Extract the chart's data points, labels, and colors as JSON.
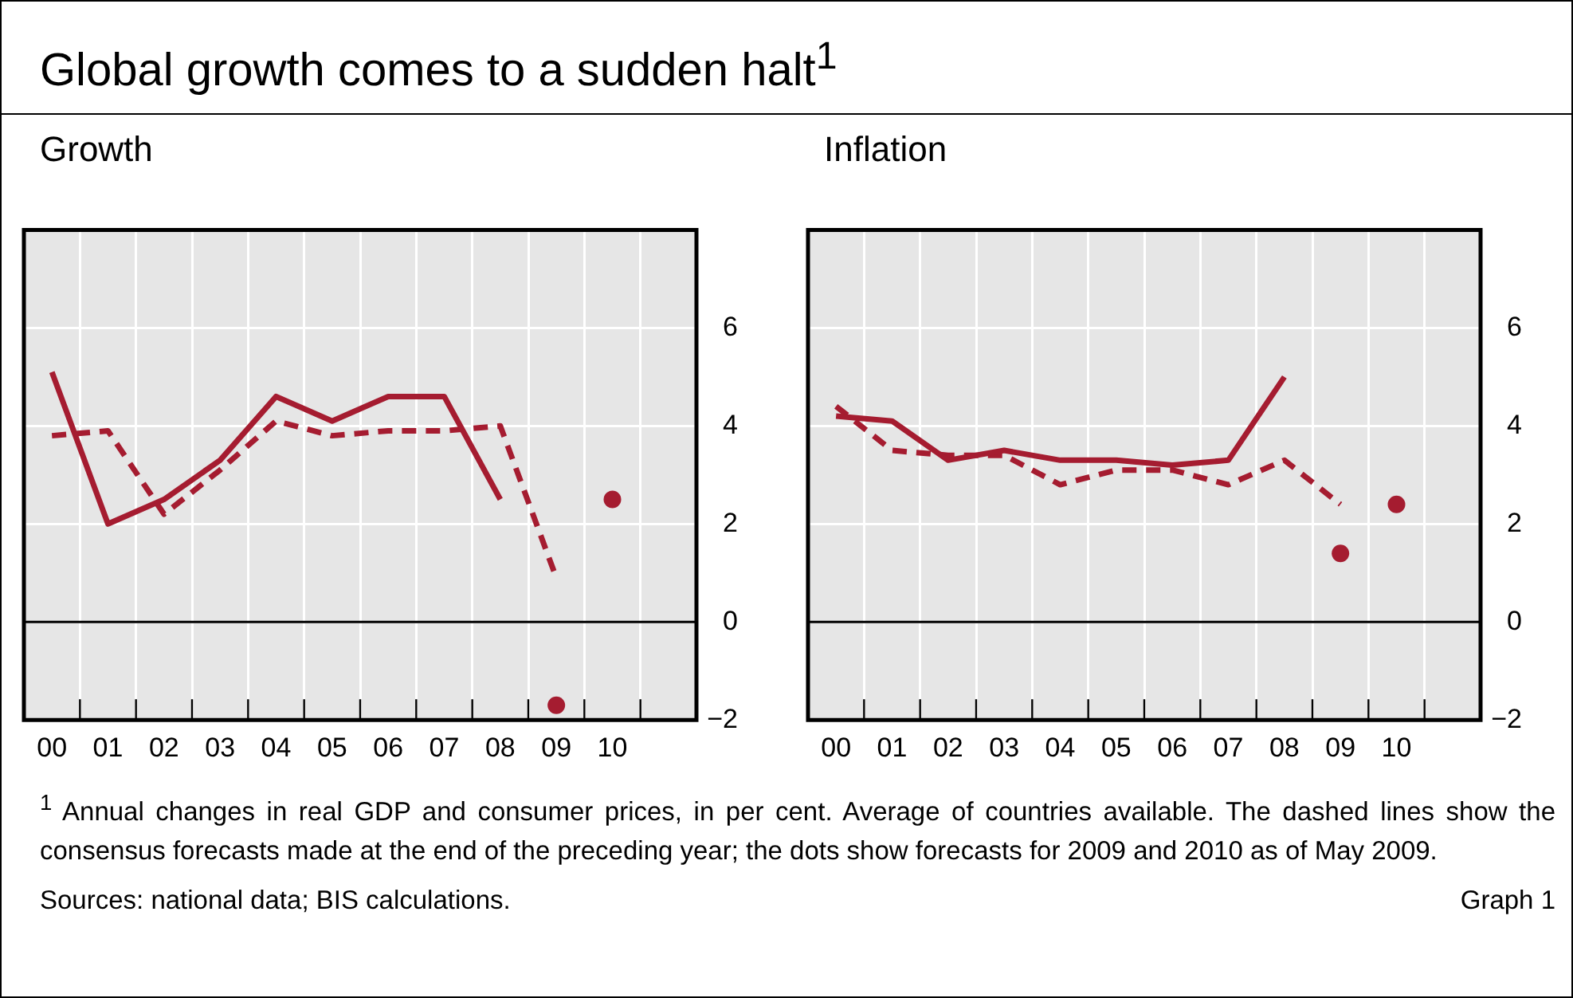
{
  "chart_data": [
    {
      "type": "line",
      "title": "Global growth comes to a sudden halt$^{1}$",
      "subtitle": "Growth",
      "xlim": [
        1999.5,
        2011.5
      ],
      "ylim": [
        -2,
        8
      ],
      "xticks": [
        {
          "value": 1999.5,
          "label": null
        },
        {
          "value": 2000,
          "label": "00"
        },
        {
          "value": 2000.5,
          "label": null
        },
        {
          "value": 2001,
          "label": "01"
        },
        {
          "value": 2001.5,
          "label": null
        },
        {
          "value": 2002,
          "label": "02"
        },
        {
          "value": 2002.5,
          "label": null
        },
        {
          "value": 2003,
          "label": "03"
        },
        {
          "value": 2003.5,
          "label": null
        },
        {
          "value": 2004,
          "label": "04"
        },
        {
          "value": 2004.5,
          "label": null
        },
        {
          "value": 2005,
          "label": "05"
        },
        {
          "value": 2005.5,
          "label": null
        },
        {
          "value": 2006,
          "label": "06"
        },
        {
          "value": 2006.5,
          "label": null
        },
        {
          "value": 2007,
          "label": "07"
        },
        {
          "value": 2007.5,
          "label": null
        },
        {
          "value": 2008,
          "label": "08"
        },
        {
          "value": 2008.5,
          "label": null
        },
        {
          "value": 2009,
          "label": "09"
        },
        {
          "value": 2009.5,
          "label": null
        },
        {
          "value": 2010,
          "label": "10"
        },
        {
          "value": 2010.5,
          "label": null
        }
      ],
      "yticks": [
        -2,
        0,
        2,
        4,
        6
      ],
      "grid": true,
      "ref_lines": [
        {
          "axis": "y",
          "value": 0,
          "color": "#000000"
        }
      ],
      "series": [
        {
          "line_style": "solid",
          "marker": "none",
          "color": "#a51c30",
          "x": [
            2000,
            2001,
            2002,
            2003,
            2004,
            2005,
            2006,
            2007,
            2008
          ],
          "values": [
            5.1,
            2.0,
            2.5,
            3.3,
            4.6,
            4.1,
            4.6,
            4.6,
            2.5
          ]
        },
        {
          "line_style": "dashed",
          "marker": "none",
          "color": "#a51c30",
          "x": [
            2000,
            2001,
            2002,
            2003,
            2004,
            2005,
            2006,
            2007,
            2008,
            2009
          ],
          "values": [
            3.8,
            3.9,
            2.2,
            3.1,
            4.1,
            3.8,
            3.9,
            3.9,
            4.0,
            0.9
          ]
        },
        {
          "type": "scatter",
          "marker": "circle",
          "color": "#a51c30",
          "x": [
            2009,
            2010
          ],
          "values": [
            -1.7,
            2.5
          ]
        }
      ],
      "annotations": [
        "$^{1}$ Annual changes in real GDP and consumer prices, in per cent. Average of countries available. The dashed lines show the consensus forecasts made at the end of the preceding year; the dots show forecasts for 2009 and 2010 as of May 2009.",
        "Sources: national data; BIS calculations.",
        "Graph 1"
      ]
    },
    {
      "type": "line",
      "subtitle": "Inflation",
      "xlim": [
        1999.5,
        2011.5
      ],
      "ylim": [
        -2,
        8
      ],
      "xticks": [
        {
          "value": 1999.5,
          "label": null
        },
        {
          "value": 2000,
          "label": "00"
        },
        {
          "value": 2000.5,
          "label": null
        },
        {
          "value": 2001,
          "label": "01"
        },
        {
          "value": 2001.5,
          "label": null
        },
        {
          "value": 2002,
          "label": "02"
        },
        {
          "value": 2002.5,
          "label": null
        },
        {
          "value": 2003,
          "label": "03"
        },
        {
          "value": 2003.5,
          "label": null
        },
        {
          "value": 2004,
          "label": "04"
        },
        {
          "value": 2004.5,
          "label": null
        },
        {
          "value": 2005,
          "label": "05"
        },
        {
          "value": 2005.5,
          "label": null
        },
        {
          "value": 2006,
          "label": "06"
        },
        {
          "value": 2006.5,
          "label": null
        },
        {
          "value": 2007,
          "label": "07"
        },
        {
          "value": 2007.5,
          "label": null
        },
        {
          "value": 2008,
          "label": "08"
        },
        {
          "value": 2008.5,
          "label": null
        },
        {
          "value": 2009,
          "label": "09"
        },
        {
          "value": 2009.5,
          "label": null
        },
        {
          "value": 2010,
          "label": "10"
        },
        {
          "value": 2010.5,
          "label": null
        }
      ],
      "yticks": [
        -2,
        0,
        2,
        4,
        6
      ],
      "grid": true,
      "ref_lines": [
        {
          "axis": "y",
          "value": 0,
          "color": "#000000"
        }
      ],
      "series": [
        {
          "line_style": "solid",
          "marker": "none",
          "color": "#a51c30",
          "x": [
            2000,
            2001,
            2002,
            2003,
            2004,
            2005,
            2006,
            2007,
            2008
          ],
          "values": [
            4.2,
            4.1,
            3.3,
            3.5,
            3.3,
            3.3,
            3.2,
            3.3,
            5.0
          ]
        },
        {
          "line_style": "dashed",
          "marker": "none",
          "color": "#a51c30",
          "x": [
            2000,
            2001,
            2002,
            2003,
            2004,
            2005,
            2006,
            2007,
            2008,
            2009
          ],
          "values": [
            4.4,
            3.5,
            3.4,
            3.4,
            2.8,
            3.1,
            3.1,
            2.8,
            3.3,
            2.4
          ]
        },
        {
          "type": "scatter",
          "marker": "circle",
          "color": "#a51c30",
          "x": [
            2009,
            2010
          ],
          "values": [
            1.4,
            2.4
          ]
        }
      ]
    }
  ]
}
